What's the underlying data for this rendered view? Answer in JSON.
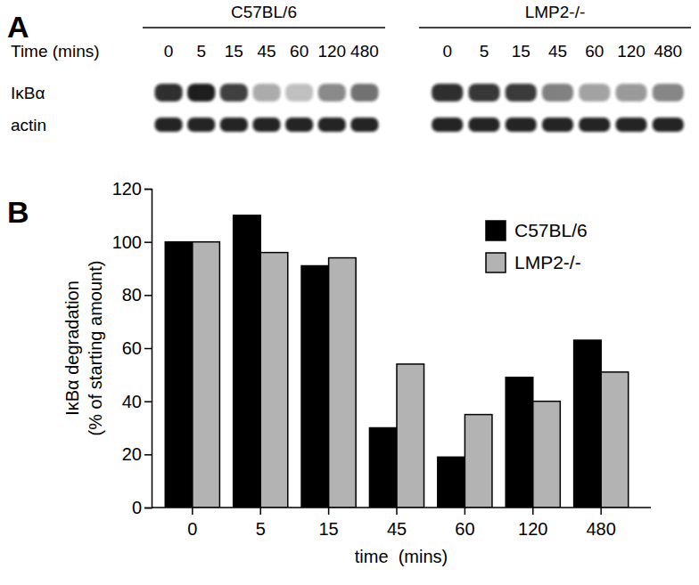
{
  "chart_data": [
    {
      "type": "blot",
      "panel": "A",
      "groups": [
        "C57BL/6",
        "LMP2-/-"
      ],
      "time_label": "Time (mins)",
      "lanes": [
        "0",
        "5",
        "15",
        "45",
        "60",
        "120",
        "480"
      ],
      "rows": [
        "IκBα",
        "actin"
      ]
    },
    {
      "type": "bar",
      "panel": "B",
      "categories": [
        "0",
        "5",
        "15",
        "45",
        "60",
        "120",
        "480"
      ],
      "series": [
        {
          "name": "C57BL/6",
          "color": "#000000",
          "values": [
            100,
            110,
            91,
            30,
            19,
            49,
            63
          ]
        },
        {
          "name": "LMP2-/-",
          "color": "#b3b3b3",
          "values": [
            100,
            96,
            94,
            54,
            35,
            40,
            51
          ]
        }
      ],
      "x_label": "time  (mins)",
      "y_label": [
        "IκBα degradation",
        "(% of starting amount)"
      ],
      "ylim": [
        0,
        120
      ],
      "yticks": [
        0,
        20,
        40,
        60,
        80,
        100,
        120
      ],
      "grid": false,
      "legend": "upper right"
    }
  ]
}
